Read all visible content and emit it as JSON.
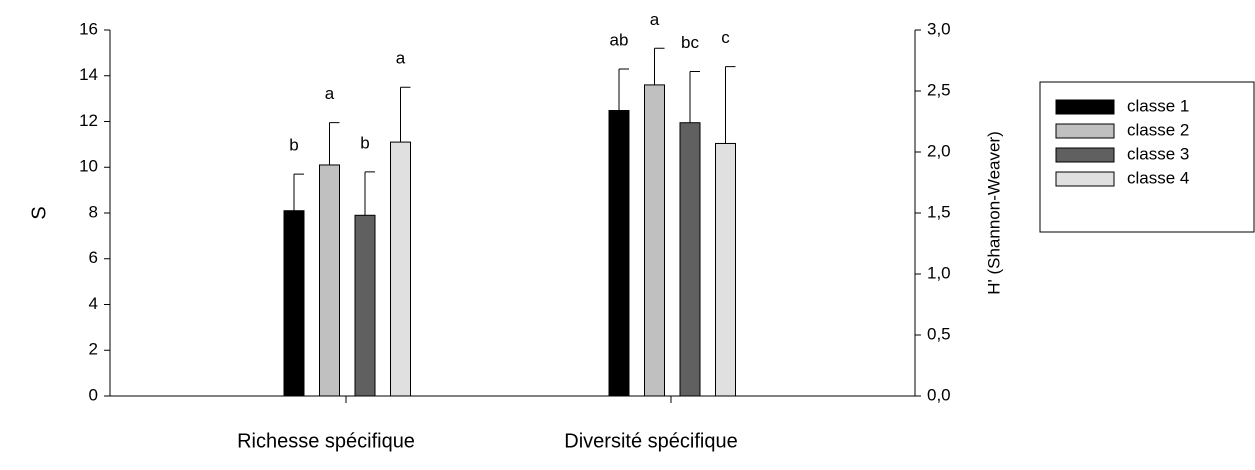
{
  "chart_data": {
    "type": "bar",
    "categories": [
      "Richesse spécifique",
      "Diversité spécifique"
    ],
    "category_axes": [
      "y",
      "y2"
    ],
    "ylabel": "S",
    "y2label": "H' (Shannon-Weaver)",
    "ylim": [
      0,
      16
    ],
    "yticks": [
      0,
      2,
      4,
      6,
      8,
      10,
      12,
      14,
      16
    ],
    "y2lim": [
      0,
      3
    ],
    "y2ticks": [
      {
        "value": 0,
        "label": "0,0"
      },
      {
        "value": 0.5,
        "label": "0,5"
      },
      {
        "value": 1,
        "label": "1,0"
      },
      {
        "value": 1.5,
        "label": "1,5"
      },
      {
        "value": 2,
        "label": "2,0"
      },
      {
        "value": 2.5,
        "label": "2,5"
      },
      {
        "value": 3,
        "label": "3,0"
      }
    ],
    "legend": "right",
    "series": [
      {
        "name": "classe 1",
        "color": "#000000",
        "values": [
          8.1,
          2.34
        ],
        "errors": [
          1.6,
          0.34
        ],
        "letters": [
          "b",
          "ab"
        ]
      },
      {
        "name": "classe 2",
        "color": "#c0c0c0",
        "values": [
          10.1,
          2.55
        ],
        "errors": [
          1.85,
          0.3
        ],
        "letters": [
          "a",
          "a"
        ]
      },
      {
        "name": "classe 3",
        "color": "#606060",
        "values": [
          7.9,
          2.24
        ],
        "errors": [
          1.9,
          0.42
        ],
        "letters": [
          "b",
          "bc"
        ]
      },
      {
        "name": "classe 4",
        "color": "#e0e0e0",
        "values": [
          11.1,
          2.07
        ],
        "errors": [
          2.4,
          0.63
        ],
        "letters": [
          "a",
          "c"
        ]
      }
    ]
  }
}
